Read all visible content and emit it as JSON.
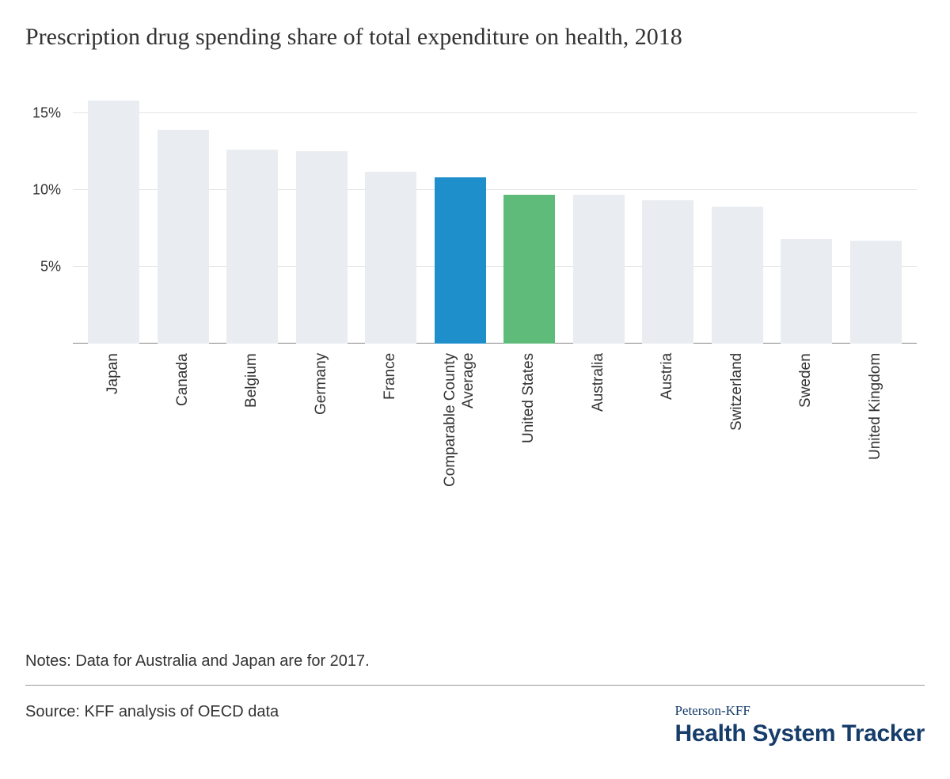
{
  "chart": {
    "type": "bar",
    "title": "Prescription drug spending share of total expenditure on health, 2018",
    "title_fontsize": 30,
    "title_color": "#333333",
    "background_color": "#ffffff",
    "ymax": 17,
    "yticks": [
      5,
      10,
      15
    ],
    "ytick_labels": [
      "5%",
      "10%",
      "15%"
    ],
    "ytick_fontsize": 18,
    "xlabel_fontsize": 19,
    "grid_color": "#e5e5e5",
    "axis_color": "#888888",
    "bar_width_pct": 74,
    "categories": [
      "Japan",
      "Canada",
      "Belgium",
      "Germany",
      "France",
      "Comparable County\nAverage",
      "United States",
      "Australia",
      "Austria",
      "Switzerland",
      "Sweden",
      "United Kingdom"
    ],
    "values": [
      15.8,
      13.9,
      12.6,
      12.5,
      11.2,
      10.8,
      9.7,
      9.7,
      9.3,
      8.9,
      6.8,
      6.7
    ],
    "bar_colors": [
      "#e9ecf0",
      "#e9ecf0",
      "#e9ecf0",
      "#e9ecf0",
      "#e9ecf0",
      "#1f8fcb",
      "#5fbb7a",
      "#e9ecf0",
      "#e9ecf0",
      "#e9ecf0",
      "#e9ecf0",
      "#e9ecf0"
    ]
  },
  "notes": "Notes: Data for Australia and Japan are for 2017.",
  "source": "Source: KFF analysis of OECD data",
  "logo": {
    "top": "Peterson-KFF",
    "bottom": "Health System Tracker",
    "color": "#163c6a"
  }
}
